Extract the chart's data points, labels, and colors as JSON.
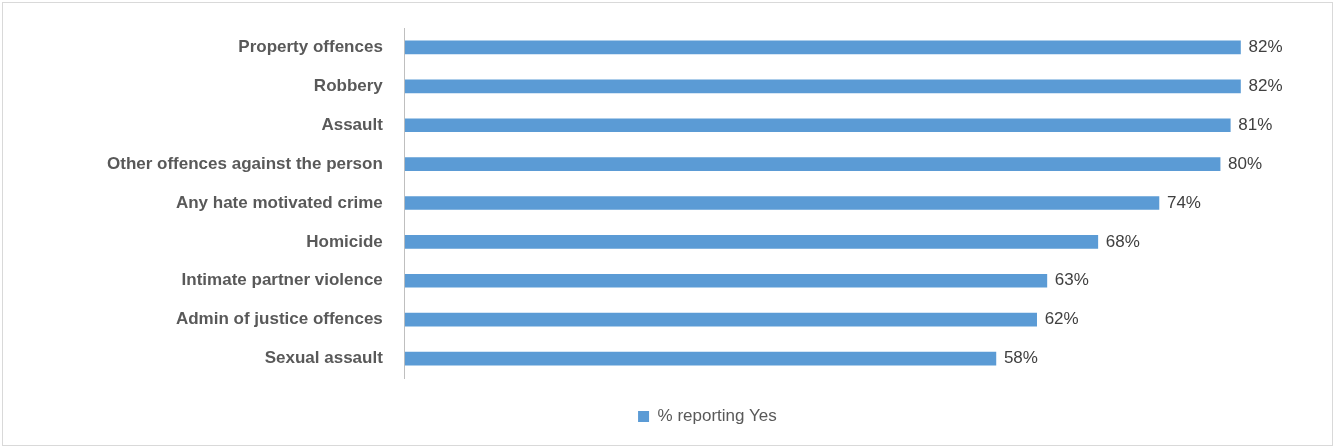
{
  "chart_data": {
    "type": "bar",
    "orientation": "horizontal",
    "categories": [
      "Property offences",
      "Robbery",
      "Assault",
      "Other offences against the person",
      "Any hate motivated crime",
      "Homicide",
      "Intimate partner violence",
      "Admin of justice offences",
      "Sexual assault"
    ],
    "series": [
      {
        "name": "% reporting Yes",
        "color": "#5b9bd5",
        "values": [
          82,
          82,
          81,
          80,
          74,
          68,
          63,
          62,
          58
        ],
        "value_labels": [
          "82%",
          "82%",
          "81%",
          "80%",
          "74%",
          "68%",
          "63%",
          "62%",
          "58%"
        ]
      }
    ],
    "legend": "bottom",
    "tick_labels": "y"
  }
}
